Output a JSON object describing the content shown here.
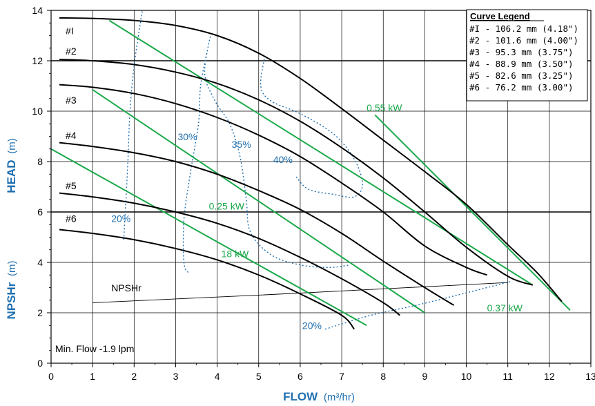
{
  "chart_data": {
    "type": "line",
    "xlabel": "FLOW",
    "xunit": "(m³/hr)",
    "ylabel_top": "HEAD",
    "ylabel_top_unit": "(m)",
    "ylabel_bottom": "NPSHr",
    "ylabel_bottom_unit": "(m)",
    "xlim": [
      0,
      13
    ],
    "ylim": [
      0,
      14
    ],
    "x_ticks": [
      "0",
      "1",
      "2",
      "3",
      "4",
      "5",
      "6",
      "7",
      "8",
      "9",
      "10",
      "11",
      "12",
      "13"
    ],
    "y_ticks": [
      "0",
      "2",
      "4",
      "6",
      "8",
      "10",
      "12",
      "14"
    ],
    "grid": true,
    "legend": {
      "title": "Curve Legend",
      "placement": "top-right",
      "entries": [
        "#I - 106.2 mm  (4.18\")",
        "#2 - 101.6 mm  (4.00\")",
        "#3 -  95.3 mm  (3.75\")",
        "#4 -  88.9 mm  (3.50\")",
        "#5 -  82.6 mm  (3.25\")",
        "#6 -  76.2 mm  (3.00\")"
      ]
    },
    "head_curves": [
      {
        "name": "#I",
        "label_at": [
          0.35,
          13.05
        ],
        "points": [
          [
            0.2,
            13.7
          ],
          [
            1,
            13.68
          ],
          [
            2,
            13.6
          ],
          [
            3,
            13.4
          ],
          [
            4,
            13.0
          ],
          [
            5,
            12.3
          ],
          [
            6,
            11.3
          ],
          [
            7,
            10.1
          ],
          [
            8,
            8.85
          ],
          [
            9,
            7.6
          ],
          [
            10,
            6.3
          ],
          [
            11,
            4.7
          ],
          [
            11.7,
            3.6
          ],
          [
            12.3,
            2.45
          ]
        ]
      },
      {
        "name": "#2",
        "label_at": [
          0.35,
          12.25
        ],
        "points": [
          [
            0.2,
            12.05
          ],
          [
            1,
            12.0
          ],
          [
            2,
            11.85
          ],
          [
            3,
            11.55
          ],
          [
            4,
            11.1
          ],
          [
            5,
            10.45
          ],
          [
            6,
            9.6
          ],
          [
            7,
            8.55
          ],
          [
            8,
            7.35
          ],
          [
            9,
            6.0
          ],
          [
            10,
            4.6
          ],
          [
            11,
            3.45
          ],
          [
            11.6,
            3.1
          ]
        ]
      },
      {
        "name": "#3",
        "label_at": [
          0.35,
          10.3
        ],
        "points": [
          [
            0.2,
            11.05
          ],
          [
            1,
            10.95
          ],
          [
            2,
            10.7
          ],
          [
            3,
            10.3
          ],
          [
            4,
            9.75
          ],
          [
            5,
            9.05
          ],
          [
            6,
            8.2
          ],
          [
            7,
            7.15
          ],
          [
            8,
            6.0
          ],
          [
            9,
            4.65
          ],
          [
            10,
            3.8
          ],
          [
            10.5,
            3.5
          ]
        ]
      },
      {
        "name": "#4",
        "label_at": [
          0.35,
          8.9
        ],
        "points": [
          [
            0.2,
            8.75
          ],
          [
            1,
            8.6
          ],
          [
            2,
            8.35
          ],
          [
            3,
            8.0
          ],
          [
            4,
            7.5
          ],
          [
            5,
            6.85
          ],
          [
            6,
            6.1
          ],
          [
            7,
            5.15
          ],
          [
            8,
            4.05
          ],
          [
            9,
            3.0
          ],
          [
            9.7,
            2.3
          ]
        ]
      },
      {
        "name": "#5",
        "label_at": [
          0.35,
          6.9
        ],
        "points": [
          [
            0.2,
            6.75
          ],
          [
            1,
            6.6
          ],
          [
            2,
            6.35
          ],
          [
            3,
            6.0
          ],
          [
            4,
            5.55
          ],
          [
            5,
            4.95
          ],
          [
            6,
            4.2
          ],
          [
            7,
            3.35
          ],
          [
            8,
            2.4
          ],
          [
            8.4,
            1.9
          ]
        ]
      },
      {
        "name": "#6",
        "label_at": [
          0.35,
          5.6
        ],
        "points": [
          [
            0.2,
            5.3
          ],
          [
            1,
            5.15
          ],
          [
            2,
            4.9
          ],
          [
            3,
            4.55
          ],
          [
            4,
            4.1
          ],
          [
            5,
            3.5
          ],
          [
            6,
            2.75
          ],
          [
            7,
            1.9
          ],
          [
            7.3,
            1.35
          ]
        ]
      }
    ],
    "power_lines": [
      {
        "label": "0.55 kW",
        "label_at": [
          7.6,
          10.0
        ],
        "points": [
          [
            7.8,
            9.85
          ],
          [
            12.5,
            2.1
          ]
        ]
      },
      {
        "label": "0.37 kW",
        "label_at": [
          10.5,
          2.05
        ],
        "points": [
          [
            1.4,
            13.6
          ],
          [
            11.6,
            3.1
          ]
        ]
      },
      {
        "label": "0.25 kW",
        "label_at": [
          3.8,
          6.1
        ],
        "points": [
          [
            1.0,
            10.85
          ],
          [
            9.0,
            2.0
          ]
        ]
      },
      {
        "label": "18 kW",
        "label_at": [
          4.1,
          4.2
        ],
        "points": [
          [
            0.0,
            8.5
          ],
          [
            7.6,
            1.5
          ]
        ]
      }
    ],
    "efficiency_contours": [
      {
        "label": "20%",
        "label_at": [
          1.45,
          5.6
        ],
        "points": [
          [
            1.75,
            4.9
          ],
          [
            1.8,
            6.4
          ],
          [
            1.85,
            8.0
          ],
          [
            1.9,
            10.0
          ],
          [
            2.0,
            11.8
          ],
          [
            2.15,
            13.5
          ],
          [
            2.2,
            14.0
          ]
        ]
      },
      {
        "label": "30%",
        "label_at": [
          3.05,
          8.85
        ],
        "points": [
          [
            3.75,
            12.3
          ],
          [
            3.6,
            11.0
          ],
          [
            3.55,
            9.5
          ],
          [
            3.35,
            7.5
          ],
          [
            3.2,
            5.7
          ],
          [
            3.2,
            4.0
          ],
          [
            3.3,
            3.6
          ]
        ]
      },
      {
        "label": "35%",
        "label_at": [
          4.35,
          8.55
        ],
        "points": [
          [
            3.85,
            13.1
          ],
          [
            3.7,
            11.5
          ],
          [
            3.95,
            10.4
          ],
          [
            4.3,
            9.5
          ],
          [
            4.55,
            8.2
          ],
          [
            4.7,
            6.5
          ],
          [
            4.8,
            5.2
          ],
          [
            5.3,
            4.3
          ],
          [
            6.0,
            3.9
          ],
          [
            6.7,
            3.8
          ],
          [
            7.2,
            3.9
          ]
        ]
      },
      {
        "label": "40%",
        "label_at": [
          5.35,
          7.95
        ],
        "points": [
          [
            5.15,
            12.2
          ],
          [
            5.05,
            11.0
          ],
          [
            5.3,
            10.4
          ],
          [
            6.0,
            9.9
          ],
          [
            6.8,
            9.1
          ],
          [
            7.3,
            8.1
          ],
          [
            7.5,
            7.1
          ],
          [
            7.3,
            6.6
          ],
          [
            6.8,
            6.7
          ],
          [
            6.2,
            6.9
          ],
          [
            5.9,
            7.4
          ]
        ]
      },
      {
        "label": "20%",
        "label_at": [
          6.05,
          1.35
        ],
        "points": [
          [
            6.6,
            1.35
          ],
          [
            7.7,
            1.9
          ],
          [
            8.8,
            2.3
          ],
          [
            9.9,
            2.75
          ],
          [
            11.1,
            3.25
          ]
        ]
      }
    ],
    "npshr_line": {
      "label": "NPSHr",
      "label_at": [
        1.45,
        2.85
      ],
      "points": [
        [
          1.0,
          2.4
        ],
        [
          5,
          2.7
        ],
        [
          8,
          2.95
        ],
        [
          11,
          3.2
        ]
      ]
    },
    "note": "Min. Flow -1.9 lpm",
    "colors": {
      "head": "#000000",
      "power": "#1aa84a",
      "efficiency": "#1f6fb0",
      "axis_label": "#1f6fb0"
    }
  }
}
